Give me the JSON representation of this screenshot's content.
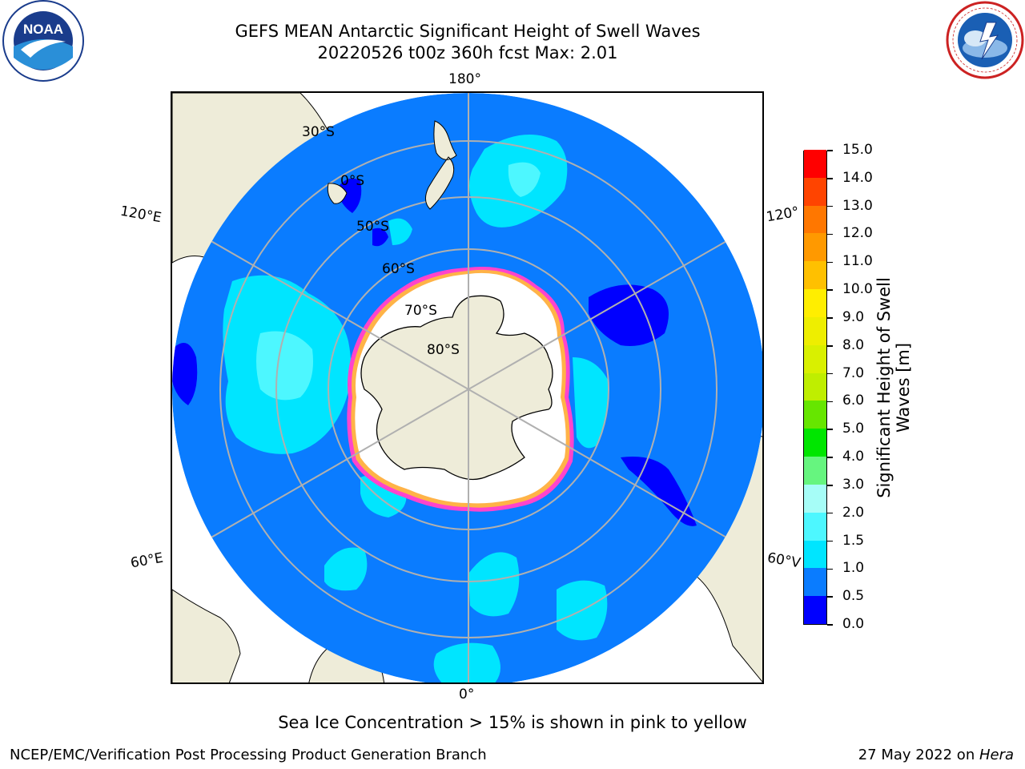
{
  "header": {
    "title": "GEFS MEAN Antarctic Significant Height of Swell Waves",
    "subtitle": "20220526 t00z 360h fcst   Max: 2.01"
  },
  "logos": {
    "left": "NOAA",
    "right": "NATIONAL WEATHER SERVICE",
    "left_ring_text": "NATIONAL OCEANIC AND ATMOSPHERIC ADMINISTRATION · U.S. DEPARTMENT OF COMMERCE"
  },
  "map": {
    "projection": "south polar stereographic",
    "longitude_labels": {
      "top": "180°",
      "bottom": "0°",
      "upper_left": "120°E",
      "lower_left": "60°E",
      "upper_right": "120°",
      "lower_right": "60°V"
    },
    "latitude_labels": [
      "30°S",
      "40°S",
      "50°S",
      "60°S",
      "70°S",
      "80°S"
    ],
    "latitude_labels_shown": [
      "30°S",
      "0°S",
      "50°S",
      "60°S",
      "70°S",
      "80°S"
    ],
    "colors": {
      "ocean_base": "#0a7cff",
      "land": "#eeecd9",
      "ice": "#ffffff",
      "grid": "#b0b0b0"
    }
  },
  "colorbar": {
    "label_line1": "Significant Height of Swell",
    "label_line2": "Waves [m]",
    "ticks": [
      "15.0",
      "14.0",
      "13.0",
      "12.0",
      "11.0",
      "10.0",
      "9.0",
      "8.0",
      "7.0",
      "6.0",
      "5.0",
      "4.0",
      "3.0",
      "2.0",
      "1.5",
      "1.0",
      "0.5",
      "0.0"
    ],
    "bins": [
      {
        "from": 0.0,
        "to": 0.5,
        "color": "#0000ff"
      },
      {
        "from": 0.5,
        "to": 1.0,
        "color": "#0a7cff"
      },
      {
        "from": 1.0,
        "to": 1.5,
        "color": "#00e5ff"
      },
      {
        "from": 1.5,
        "to": 2.0,
        "color": "#4df7ff"
      },
      {
        "from": 2.0,
        "to": 3.0,
        "color": "#a6fdf7"
      },
      {
        "from": 3.0,
        "to": 4.0,
        "color": "#66f57f"
      },
      {
        "from": 4.0,
        "to": 5.0,
        "color": "#00e600"
      },
      {
        "from": 5.0,
        "to": 6.0,
        "color": "#66e600"
      },
      {
        "from": 6.0,
        "to": 7.0,
        "color": "#bfee00"
      },
      {
        "from": 7.0,
        "to": 8.0,
        "color": "#d9f000"
      },
      {
        "from": 8.0,
        "to": 9.0,
        "color": "#eeee00"
      },
      {
        "from": 9.0,
        "to": 10.0,
        "color": "#ffee00"
      },
      {
        "from": 10.0,
        "to": 11.0,
        "color": "#ffc000"
      },
      {
        "from": 11.0,
        "to": 12.0,
        "color": "#ff9900"
      },
      {
        "from": 12.0,
        "to": 13.0,
        "color": "#ff7700"
      },
      {
        "from": 13.0,
        "to": 14.0,
        "color": "#ff4400"
      },
      {
        "from": 14.0,
        "to": 15.0,
        "color": "#ff0000"
      }
    ]
  },
  "caption": "Sea Ice Concentration > 15% is shown in pink to yellow",
  "footer": {
    "left": "NCEP/EMC/Verification Post Processing Product Generation Branch",
    "right_prefix": "27 May 2022 on ",
    "right_host": "Hera"
  }
}
